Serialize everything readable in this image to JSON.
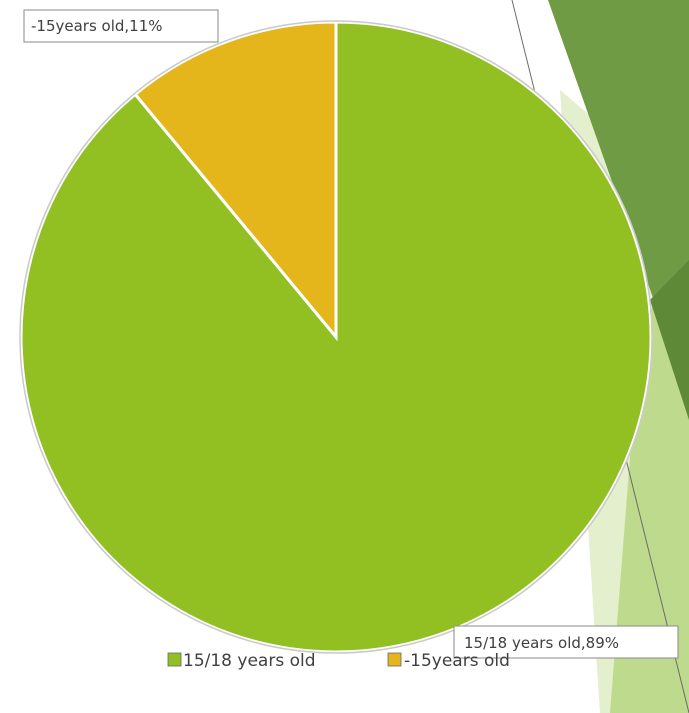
{
  "chart_data": {
    "type": "pie",
    "title": "",
    "categories": [
      "15/18 years old",
      "-15years old"
    ],
    "values": [
      89,
      11
    ],
    "unit": "%",
    "colors": [
      "#92c023",
      "#e5b51c"
    ],
    "data_labels": [
      "15/18 years old,89%",
      "-15years old,11%"
    ],
    "legend": {
      "position": "bottom",
      "entries": [
        "15/18 years old",
        "-15years old"
      ]
    },
    "background_decor_colors": [
      "#6f9b45",
      "#a8cc6a",
      "#d4e8b0"
    ]
  }
}
